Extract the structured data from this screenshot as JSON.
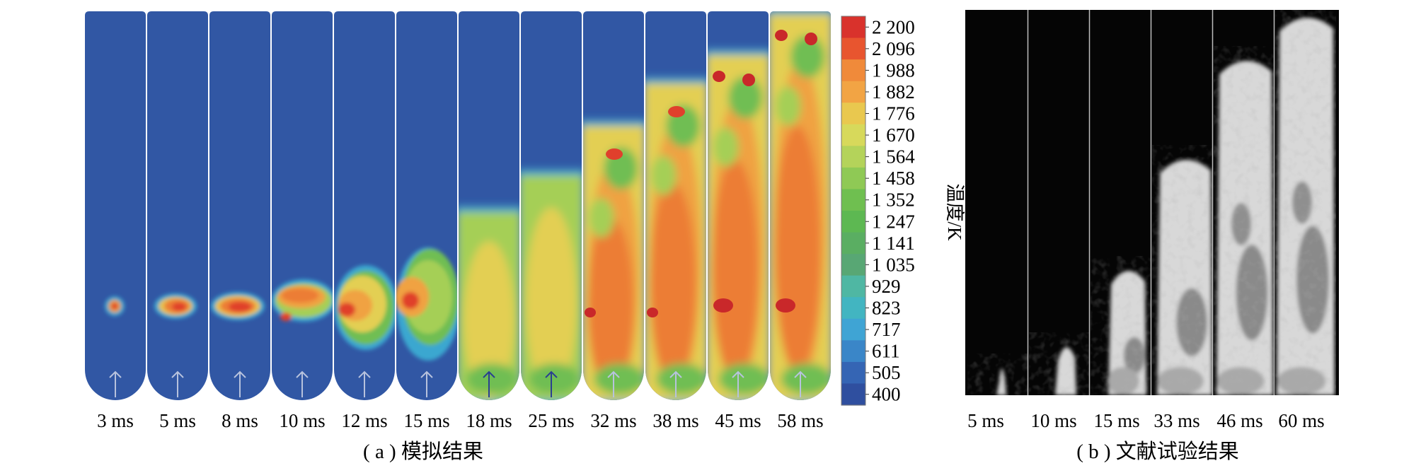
{
  "panel_a": {
    "frames": [
      "3 ms",
      "5 ms",
      "8 ms",
      "10 ms",
      "12 ms",
      "15 ms",
      "18 ms",
      "25 ms",
      "32 ms",
      "38 ms",
      "45 ms",
      "58 ms"
    ],
    "caption": "( a ) 模拟结果"
  },
  "colorbar": {
    "title": "温度/K",
    "ticks": [
      "2 200",
      "2 096",
      "1 988",
      "1 882",
      "1 776",
      "1 670",
      "1 564",
      "1 458",
      "1 352",
      "1 247",
      "1 141",
      "1 035",
      "929",
      "823",
      "717",
      "611",
      "505",
      "400"
    ],
    "colors": [
      "#d9322c",
      "#e8552f",
      "#f08a3a",
      "#f2a444",
      "#e9c84f",
      "#d7d95b",
      "#b4d35a",
      "#8fc955",
      "#6fbf50",
      "#5db852",
      "#5aae62",
      "#58a774",
      "#4fb7a3",
      "#42b5c1",
      "#3fa4d4",
      "#3a86c8",
      "#3565b4",
      "#2f4f9f"
    ]
  },
  "panel_b": {
    "frames": [
      "5 ms",
      "10 ms",
      "15 ms",
      "33 ms",
      "46 ms",
      "60 ms"
    ],
    "caption": "( b ) 文献试验结果"
  }
}
